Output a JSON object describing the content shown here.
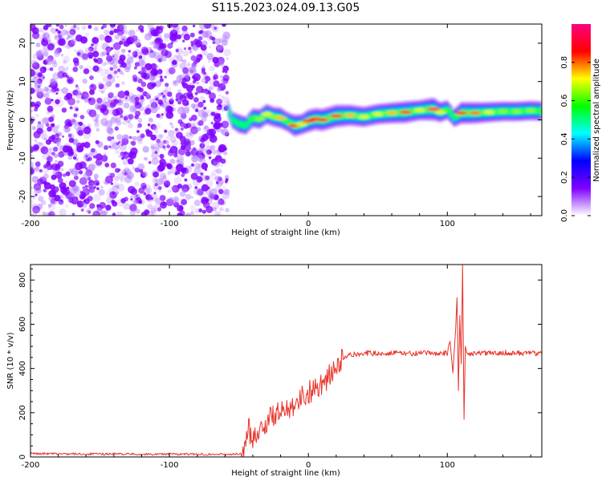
{
  "title": "S115.2023.024.09.13.G05",
  "chart_data": [
    {
      "type": "heatmap",
      "xlabel": "Height of straight line (km)",
      "ylabel": "Frequency (Hz)",
      "xlim": [
        -200,
        168
      ],
      "ylim": [
        -25,
        25
      ],
      "xticks": [
        -200,
        -100,
        0,
        100
      ],
      "yticks": [
        -20,
        -10,
        0,
        10,
        20
      ],
      "colorbar": {
        "label": "Normalized spectral amplitude",
        "range": [
          0,
          1
        ],
        "ticks": [
          0.0,
          0.2,
          0.4,
          0.6,
          0.8
        ],
        "tick_labels": [
          "0.0",
          "0.2",
          "0.4",
          "0.6",
          "0.8"
        ],
        "colormap": [
          "#ffffff",
          "#7f00ff",
          "#0000ff",
          "#00ffff",
          "#00ff00",
          "#ffff00",
          "#ff0000",
          "#ff007f"
        ]
      },
      "noise_region_x": [
        -200,
        -58
      ],
      "signal_track": {
        "x": [
          -58,
          -55,
          -50,
          -45,
          -40,
          -35,
          -30,
          -25,
          -20,
          -15,
          -10,
          -5,
          0,
          5,
          10,
          20,
          30,
          40,
          50,
          60,
          70,
          80,
          90,
          95,
          100,
          105,
          110,
          120,
          130,
          140,
          150,
          160,
          168
        ],
        "frequency": [
          3,
          0,
          -1,
          -1.5,
          0.5,
          0.2,
          1.5,
          0.8,
          0.5,
          -0.5,
          -1.5,
          -1.2,
          -0.3,
          0.2,
          0,
          1,
          1.2,
          0.8,
          1.5,
          1.8,
          2,
          2.5,
          2.8,
          2,
          2.6,
          0.5,
          1.8,
          1.8,
          2,
          2.2,
          2.2,
          2.4,
          2.3
        ],
        "amplitude": [
          0.45,
          0.35,
          0.55,
          0.5,
          0.6,
          0.65,
          0.7,
          0.65,
          0.75,
          0.6,
          0.85,
          0.7,
          0.9,
          0.85,
          0.88,
          0.9,
          0.75,
          0.7,
          0.7,
          0.75,
          0.85,
          0.7,
          0.95,
          0.7,
          0.6,
          0.5,
          0.85,
          0.8,
          0.7,
          0.65,
          0.65,
          0.65,
          0.6
        ]
      }
    },
    {
      "type": "line",
      "xlabel": "Height of straight line (km)",
      "ylabel": "SNR (10 * v/v)",
      "xlim": [
        -200,
        168
      ],
      "ylim": [
        0,
        870
      ],
      "xticks": [
        -200,
        -100,
        0,
        100
      ],
      "yticks": [
        0,
        200,
        400,
        600,
        800
      ],
      "line_color": "#e8322a",
      "series": [
        {
          "x": [
            -200,
            -180,
            -160,
            -140,
            -120,
            -100,
            -80,
            -60,
            -48,
            -45,
            -43,
            -40,
            -35,
            -30,
            -25,
            -20,
            -15,
            -10,
            -5,
            0,
            5,
            10,
            15,
            20,
            25,
            30,
            40,
            50,
            60,
            70,
            80,
            90,
            100,
            102,
            104,
            106,
            107,
            108,
            109,
            110,
            111,
            112,
            113,
            114,
            116,
            120,
            130,
            140,
            150,
            160,
            168
          ],
          "y": [
            15,
            14,
            13,
            14,
            12,
            13,
            12,
            12,
            13,
            60,
            120,
            95,
            125,
            155,
            190,
            195,
            225,
            245,
            270,
            290,
            315,
            335,
            365,
            400,
            445,
            460,
            470,
            468,
            470,
            468,
            468,
            470,
            468,
            520,
            380,
            580,
            720,
            300,
            640,
            420,
            870,
            170,
            500,
            470,
            468,
            470,
            468,
            472,
            470,
            470,
            468
          ]
        }
      ]
    }
  ]
}
